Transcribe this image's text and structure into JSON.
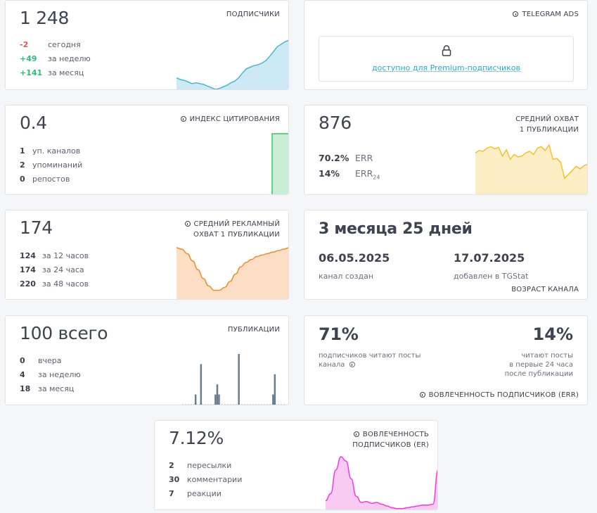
{
  "subscribers": {
    "value": "1 248",
    "label": "ПОДПИСЧИКИ",
    "rows": [
      {
        "n": "-2",
        "t": "сегодня"
      },
      {
        "n": "+49",
        "t": "за неделю"
      },
      {
        "n": "+141",
        "t": "за месяц"
      }
    ],
    "color": "#4ab4d6",
    "chart_data": {
      "type": "area",
      "values": [
        22,
        20,
        19,
        17,
        15,
        16,
        15,
        14,
        12,
        10,
        8,
        9,
        11,
        13,
        16,
        18,
        22,
        28,
        33,
        35,
        37,
        38,
        40,
        43,
        48,
        54,
        60,
        63,
        66,
        68
      ]
    }
  },
  "telegram_ads": {
    "label": "TELEGRAM ADS",
    "lock_text": "доступно для Premium-подписчиков"
  },
  "citation": {
    "value": "0.4",
    "label": "ИНДЕКС ЦИТИРОВАНИЯ",
    "rows": [
      {
        "n": "1",
        "t": "уп. каналов"
      },
      {
        "n": "2",
        "t": "упоминаний"
      },
      {
        "n": "0",
        "t": "репостов"
      }
    ],
    "color": "#3fbf6a",
    "chart_data": {
      "type": "area",
      "values": [
        0,
        0,
        0,
        0,
        0,
        0,
        0,
        0,
        0,
        0,
        0,
        0,
        0,
        0,
        0,
        0,
        0,
        0,
        0,
        0,
        0,
        0,
        0,
        0,
        1,
        1,
        1,
        1,
        1,
        1
      ]
    }
  },
  "reach": {
    "value": "876",
    "label_line1": "СРЕДНИЙ ОХВАТ",
    "label_line2": "1 ПУБЛИКАЦИИ",
    "rows": [
      {
        "n": "70.2%",
        "t": "ERR",
        "sub": ""
      },
      {
        "n": "14%",
        "t": "ERR",
        "sub": "24"
      }
    ],
    "color": "#f2c12e",
    "chart_data": {
      "type": "area",
      "values": [
        52,
        55,
        54,
        58,
        60,
        57,
        59,
        48,
        56,
        44,
        50,
        47,
        48,
        52,
        54,
        50,
        58,
        60,
        55,
        62,
        44,
        45,
        40,
        20,
        25,
        30,
        35,
        32,
        36,
        38
      ]
    }
  },
  "ad_reach": {
    "value": "174",
    "label_line1": "СРЕДНИЙ РЕКЛАМНЫЙ",
    "label_line2": "ОХВАТ 1 ПУБЛИКАЦИИ",
    "rows": [
      {
        "n": "124",
        "t": "за 12 часов"
      },
      {
        "n": "174",
        "t": "за 24 часа"
      },
      {
        "n": "220",
        "t": "за 48 часов"
      }
    ],
    "color": "#f08a2c",
    "chart_data": {
      "type": "area",
      "values": [
        70,
        68,
        62,
        52,
        40,
        28,
        18,
        12,
        12,
        16,
        24,
        34,
        44,
        50,
        54,
        58,
        60,
        62,
        64,
        66,
        68,
        70
      ]
    }
  },
  "age": {
    "value": "3 месяца 25 дней",
    "created_date": "06.05.2025",
    "created_label": "канал создан",
    "added_date": "17.07.2025",
    "added_label": "добавлен в TGStat",
    "label": "ВОЗРАСТ КАНАЛА"
  },
  "posts": {
    "value": "100 всего",
    "label": "ПУБЛИКАЦИИ",
    "rows": [
      {
        "n": "0",
        "t": "вчера"
      },
      {
        "n": "4",
        "t": "за неделю"
      },
      {
        "n": "18",
        "t": "за месяц"
      }
    ],
    "color": "#6b7c8d",
    "chart_data": {
      "type": "bar",
      "values": [
        0,
        0,
        0,
        0,
        0,
        0,
        0,
        1,
        0,
        0,
        4,
        0,
        0,
        0,
        0,
        0,
        0,
        0,
        1,
        2,
        1,
        0,
        0,
        0,
        0,
        0,
        0,
        0,
        0,
        0,
        0,
        5,
        0,
        0,
        0,
        0,
        0,
        0,
        0,
        0,
        0,
        0,
        0,
        0,
        0,
        0,
        0,
        0,
        0,
        0,
        1,
        3,
        0,
        0,
        0,
        0,
        0,
        0
      ]
    }
  },
  "engagement_err": {
    "value_left": "71%",
    "text_left_line1": "подписчиков читают посты",
    "text_left_line2": "канала",
    "value_right": "14%",
    "text_right_line1": "читают посты",
    "text_right_line2": "в первые 24 часа",
    "text_right_line3": "после публикации",
    "label": "ВОВЛЕЧЕННОСТЬ ПОДПИСЧИКОВ (ERR)"
  },
  "engagement_er": {
    "value": "7.12%",
    "label_line1": "ВОВЛЕЧЕННОСТЬ",
    "label_line2": "ПОДПИСЧИКОВ (ER)",
    "rows": [
      {
        "n": "2",
        "t": "пересылки"
      },
      {
        "n": "30",
        "t": "комментарии"
      },
      {
        "n": "7",
        "t": "реакции"
      }
    ],
    "color": "#e83fd6",
    "chart_data": {
      "type": "area",
      "values": [
        10,
        18,
        45,
        60,
        55,
        35,
        15,
        8,
        9,
        7,
        8,
        6,
        4,
        2,
        1,
        1,
        2,
        3,
        4,
        5,
        5,
        6,
        45
      ]
    }
  }
}
